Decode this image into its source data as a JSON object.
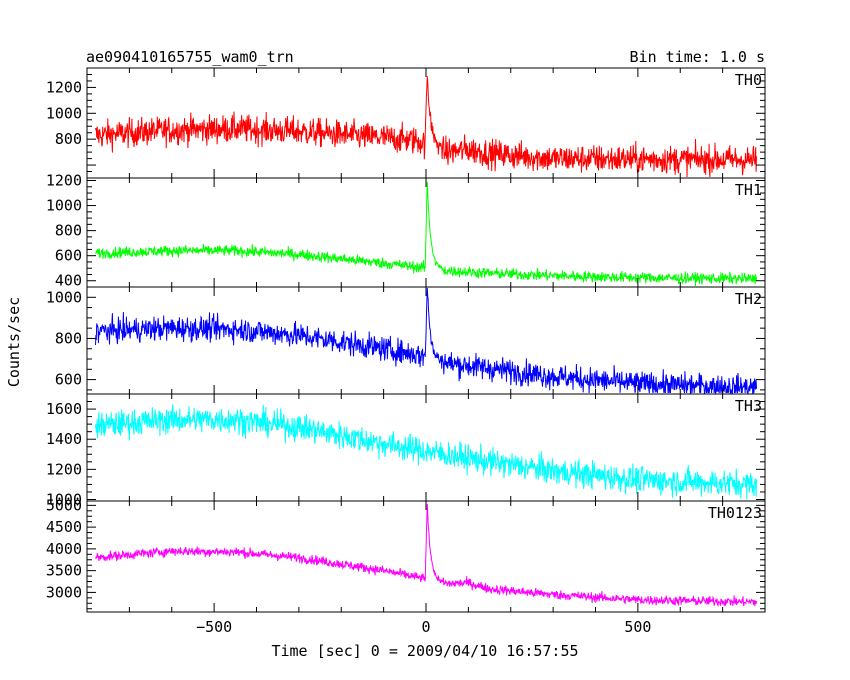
{
  "chart_data": {
    "type": "line",
    "title": "ae090410165755_wam0_trn",
    "bin_time": "Bin time: 1.0 s",
    "xlabel": "Time [sec] 0 = 2009/04/10 16:57:55",
    "ylabel": "Counts/sec",
    "xlim": [
      -800,
      800
    ],
    "x_ticks": [
      -500,
      0,
      500
    ],
    "x_tick_labels": [
      "−500",
      "0",
      "500"
    ],
    "grid": false,
    "panels": [
      {
        "name": "TH0",
        "color": "#ff0000",
        "ylim": [
          500,
          1350
        ],
        "y_ticks": [
          800,
          1000,
          1200
        ],
        "baseline": [
          [
            -780,
            830
          ],
          [
            -600,
            870
          ],
          [
            -450,
            880
          ],
          [
            -300,
            860
          ],
          [
            -100,
            810
          ],
          [
            -20,
            790
          ],
          [
            50,
            700
          ],
          [
            100,
            720
          ],
          [
            150,
            690
          ],
          [
            300,
            650
          ],
          [
            500,
            645
          ],
          [
            780,
            640
          ]
        ],
        "peak": 1330,
        "noise": 55
      },
      {
        "name": "TH1",
        "color": "#00ff00",
        "ylim": [
          350,
          1220
        ],
        "y_ticks": [
          400,
          600,
          800,
          1000,
          1200
        ],
        "baseline": [
          [
            -780,
            620
          ],
          [
            -600,
            640
          ],
          [
            -450,
            640
          ],
          [
            -300,
            610
          ],
          [
            -100,
            540
          ],
          [
            -20,
            510
          ],
          [
            50,
            480
          ],
          [
            150,
            460
          ],
          [
            300,
            440
          ],
          [
            500,
            425
          ],
          [
            780,
            415
          ]
        ],
        "peak": 1200,
        "noise": 22
      },
      {
        "name": "TH2",
        "color": "#0000ff",
        "ylim": [
          530,
          1050
        ],
        "y_ticks": [
          600,
          800,
          1000
        ],
        "baseline": [
          [
            -780,
            835
          ],
          [
            -600,
            850
          ],
          [
            -450,
            845
          ],
          [
            -300,
            815
          ],
          [
            -100,
            750
          ],
          [
            -20,
            720
          ],
          [
            50,
            680
          ],
          [
            150,
            655
          ],
          [
            300,
            615
          ],
          [
            500,
            580
          ],
          [
            780,
            560
          ]
        ],
        "peak": 1040,
        "noise": 30
      },
      {
        "name": "TH3",
        "color": "#00ffff",
        "ylim": [
          990,
          1700
        ],
        "y_ticks": [
          1000,
          1200,
          1400,
          1600
        ],
        "baseline": [
          [
            -780,
            1490
          ],
          [
            -600,
            1530
          ],
          [
            -450,
            1530
          ],
          [
            -300,
            1480
          ],
          [
            -100,
            1370
          ],
          [
            0,
            1320
          ],
          [
            150,
            1250
          ],
          [
            300,
            1190
          ],
          [
            500,
            1130
          ],
          [
            780,
            1100
          ]
        ],
        "peak": 0,
        "noise": 45
      },
      {
        "name": "TH0123",
        "color": "#ff00ff",
        "ylim": [
          2550,
          5100
        ],
        "y_ticks": [
          3000,
          3500,
          4000,
          4500,
          5000
        ],
        "baseline": [
          [
            -780,
            3800
          ],
          [
            -600,
            3950
          ],
          [
            -450,
            3930
          ],
          [
            -300,
            3800
          ],
          [
            -100,
            3500
          ],
          [
            -20,
            3350
          ],
          [
            50,
            3200
          ],
          [
            100,
            3220
          ],
          [
            150,
            3080
          ],
          [
            300,
            2950
          ],
          [
            500,
            2830
          ],
          [
            780,
            2780
          ]
        ],
        "peak": 5000,
        "noise": 55
      }
    ]
  }
}
